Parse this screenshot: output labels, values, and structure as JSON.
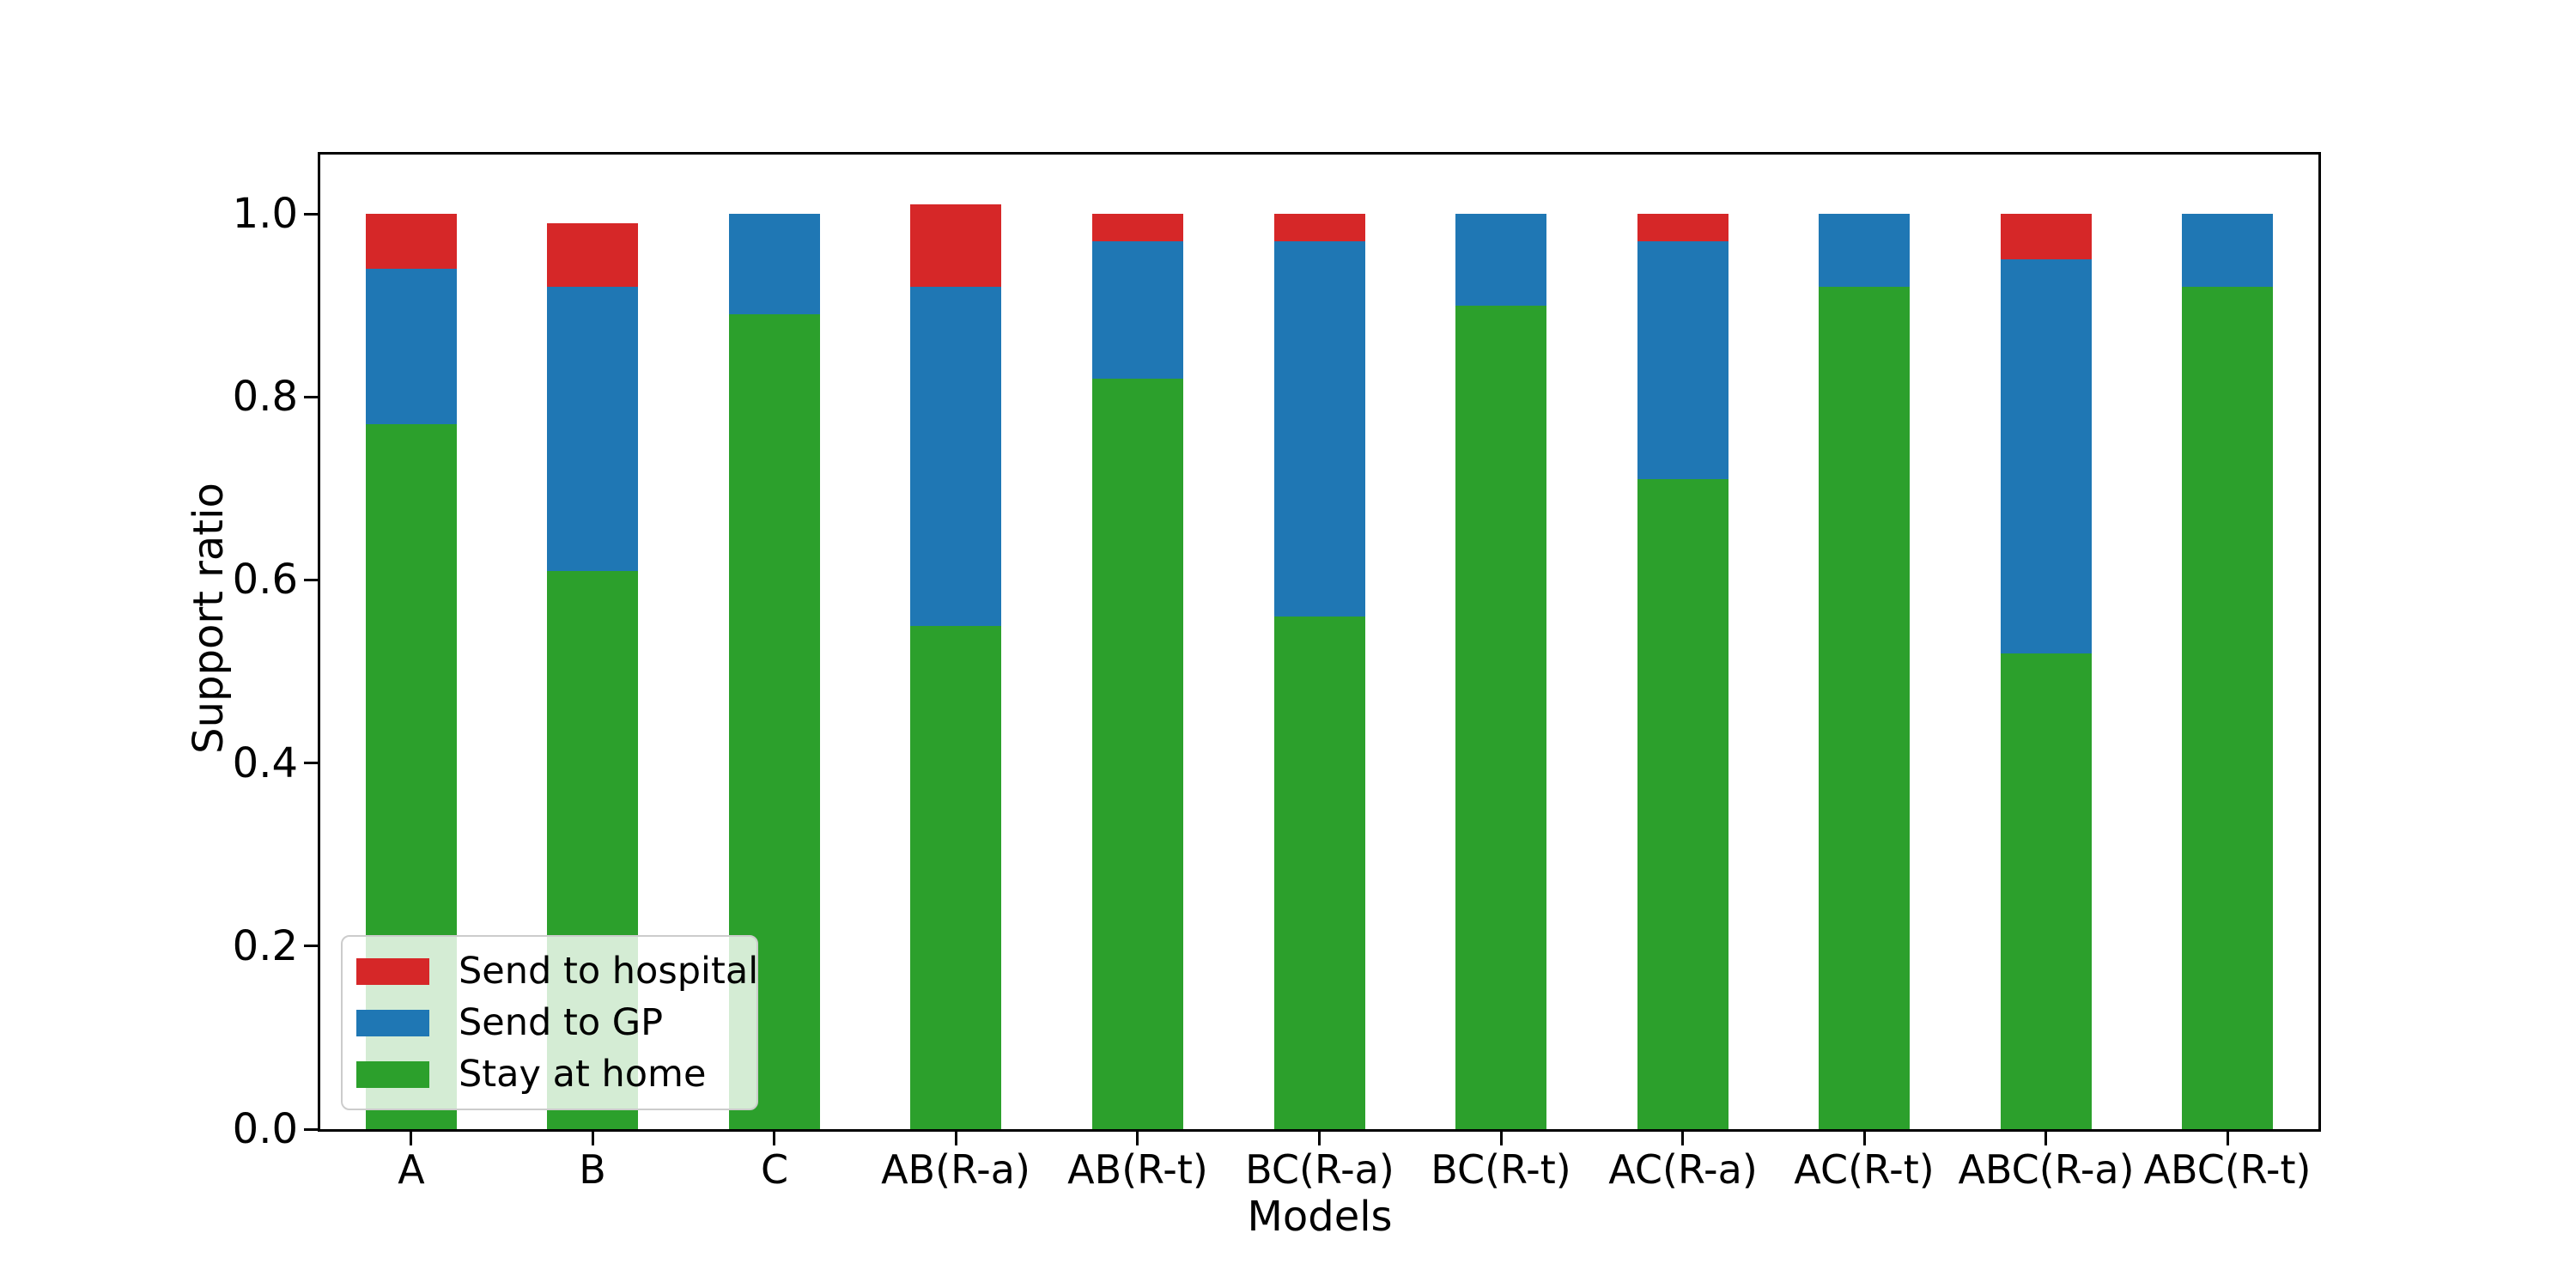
{
  "figure": {
    "background": "#ffffff"
  },
  "chart_data": {
    "type": "bar",
    "stacked": true,
    "title": "",
    "xlabel": "Models",
    "ylabel": "Support ratio",
    "categories": [
      "A",
      "B",
      "C",
      "AB(R-a)",
      "AB(R-t)",
      "BC(R-a)",
      "BC(R-t)",
      "AC(R-a)",
      "AC(R-t)",
      "ABC(R-a)",
      "ABC(R-t)"
    ],
    "series": [
      {
        "name": "Send to hospital",
        "color": "#d62728",
        "values": [
          0.06,
          0.07,
          0.0,
          0.09,
          0.03,
          0.03,
          0.0,
          0.03,
          0.0,
          0.05,
          0.0
        ]
      },
      {
        "name": "Send to GP",
        "color": "#1f77b4",
        "values": [
          0.17,
          0.31,
          0.11,
          0.37,
          0.15,
          0.41,
          0.1,
          0.26,
          0.08,
          0.43,
          0.08
        ]
      },
      {
        "name": "Stay at home",
        "color": "#2ca02c",
        "values": [
          0.77,
          0.61,
          0.89,
          0.55,
          0.82,
          0.56,
          0.9,
          0.71,
          0.92,
          0.52,
          0.92
        ]
      }
    ],
    "stack_order_bottom_to_top": [
      "Stay at home",
      "Send to GP",
      "Send to hospital"
    ],
    "yticks": [
      "0.0",
      "0.2",
      "0.4",
      "0.6",
      "0.8",
      "1.0"
    ],
    "ylim": [
      0,
      1.065
    ],
    "grid": false,
    "legend_position": "lower left",
    "spine_color": "#000000",
    "text_color": "#000000"
  }
}
